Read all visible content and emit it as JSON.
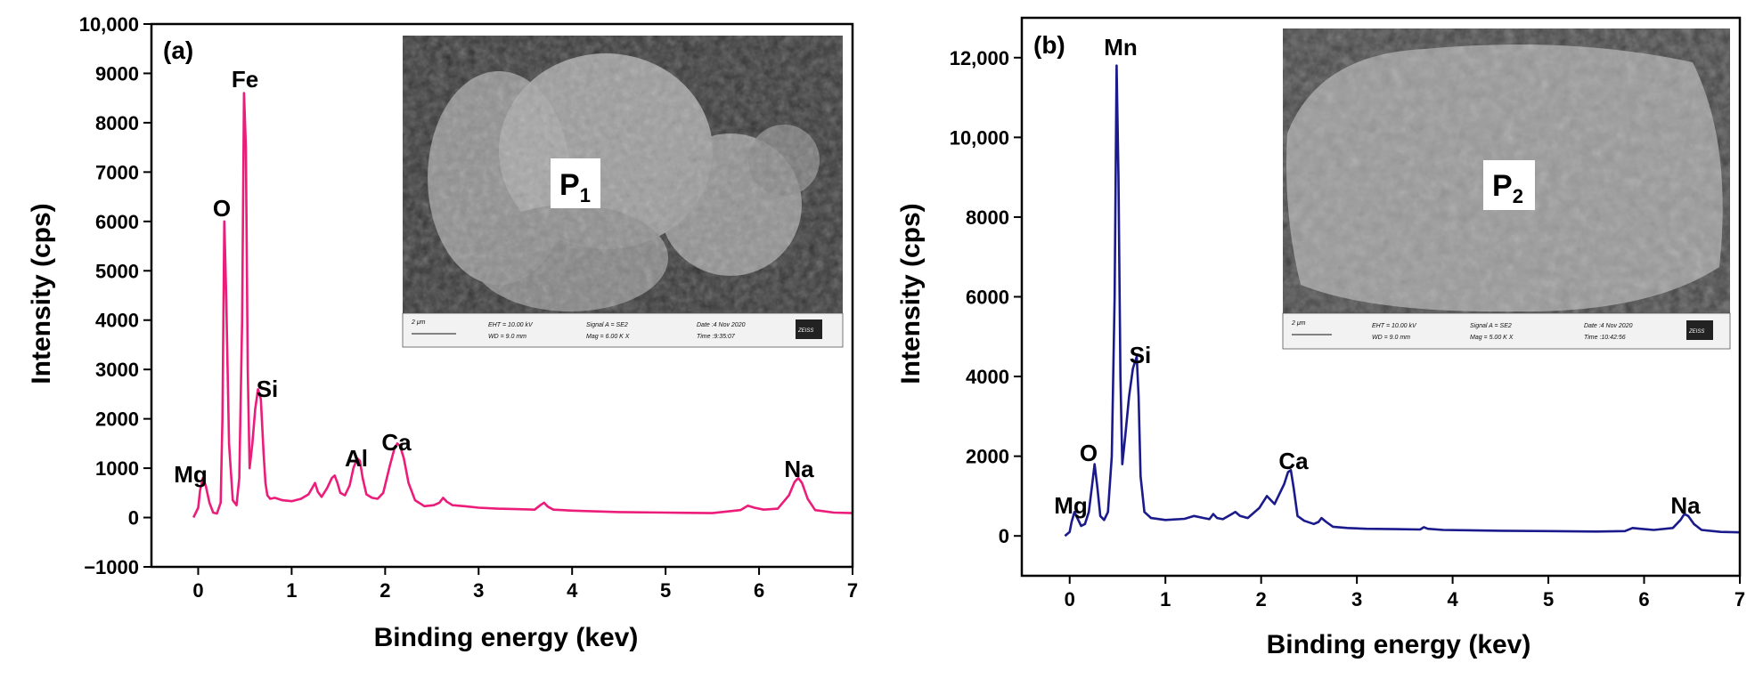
{
  "chart_data": [
    {
      "type": "line",
      "panel_label": "(a)",
      "xlabel": "Binding energy (kev)",
      "ylabel": "Intensity (cps)",
      "xlim": [
        -0.5,
        7
      ],
      "ylim": [
        -1000,
        10000
      ],
      "x_ticks": [
        0,
        1,
        2,
        3,
        4,
        5,
        6,
        7
      ],
      "y_ticks": [
        -1000,
        0,
        1000,
        2000,
        3000,
        4000,
        5000,
        6000,
        7000,
        8000,
        9000,
        10000
      ],
      "y_tick_labels": [
        "−1000",
        "0",
        "1000",
        "2000",
        "3000",
        "4000",
        "5000",
        "6000",
        "7000",
        "8000",
        "9000",
        "10,000"
      ],
      "line_color": "#ec1c7a",
      "series": [
        {
          "x": [
            -0.05,
            0.0,
            0.02,
            0.05,
            0.08,
            0.12,
            0.16,
            0.2,
            0.24,
            0.26,
            0.28,
            0.3,
            0.33,
            0.37,
            0.41,
            0.44,
            0.47,
            0.49,
            0.51,
            0.53,
            0.55,
            0.58,
            0.61,
            0.64,
            0.67,
            0.7,
            0.72,
            0.74,
            0.77,
            0.82,
            0.9,
            1.0,
            1.1,
            1.18,
            1.22,
            1.25,
            1.28,
            1.32,
            1.38,
            1.43,
            1.46,
            1.49,
            1.52,
            1.57,
            1.62,
            1.66,
            1.7,
            1.73,
            1.76,
            1.8,
            1.86,
            1.92,
            1.98,
            2.05,
            2.1,
            2.13,
            2.16,
            2.2,
            2.25,
            2.32,
            2.42,
            2.52,
            2.58,
            2.62,
            2.66,
            2.72,
            2.85,
            3.0,
            3.2,
            3.4,
            3.6,
            3.66,
            3.7,
            3.74,
            3.8,
            4.0,
            4.5,
            5.0,
            5.5,
            5.8,
            5.88,
            5.95,
            6.05,
            6.2,
            6.32,
            6.38,
            6.42,
            6.46,
            6.52,
            6.6,
            6.8,
            7.0
          ],
          "y": [
            0,
            200,
            550,
            800,
            650,
            300,
            100,
            80,
            300,
            2000,
            6000,
            4500,
            1500,
            350,
            250,
            800,
            4000,
            8600,
            7500,
            3000,
            1000,
            1500,
            2200,
            2600,
            2400,
            1300,
            700,
            450,
            380,
            400,
            350,
            330,
            380,
            470,
            600,
            700,
            520,
            420,
            600,
            800,
            850,
            700,
            500,
            450,
            650,
            1000,
            1200,
            1150,
            800,
            470,
            400,
            380,
            500,
            1050,
            1400,
            1500,
            1450,
            1200,
            700,
            350,
            230,
            250,
            300,
            400,
            320,
            250,
            230,
            200,
            180,
            170,
            160,
            250,
            300,
            220,
            160,
            140,
            110,
            100,
            90,
            150,
            240,
            200,
            160,
            180,
            450,
            720,
            800,
            700,
            380,
            150,
            100,
            90
          ]
        }
      ],
      "annotations": [
        "Mg",
        "O",
        "Fe",
        "Si",
        "Al",
        "Ca",
        "Na"
      ],
      "inset": {
        "label_main": "P",
        "label_sub": "1",
        "info_lines": [
          "2 μm",
          "EHT = 10.00 kV",
          "WD = 9.0 mm",
          "Signal A = SE2",
          "Mag = 6.00 K X",
          "Date :4 Nov 2020",
          "Time :9:35:07",
          "ZEISS"
        ]
      }
    },
    {
      "type": "line",
      "panel_label": "(b)",
      "xlabel": "Binding energy (kev)",
      "ylabel": "Intensity (cps)",
      "xlim": [
        -0.5,
        7
      ],
      "ylim": [
        -1000,
        13000
      ],
      "x_ticks": [
        0,
        1,
        2,
        3,
        4,
        5,
        6,
        7
      ],
      "y_ticks": [
        0,
        2000,
        4000,
        6000,
        8000,
        10000,
        12000
      ],
      "y_tick_labels": [
        "0",
        "2000",
        "4000",
        "6000",
        "8000",
        "10,000",
        "12,000"
      ],
      "line_color": "#1a1a8c",
      "series": [
        {
          "x": [
            -0.05,
            0.0,
            0.02,
            0.05,
            0.08,
            0.12,
            0.16,
            0.2,
            0.23,
            0.26,
            0.29,
            0.32,
            0.36,
            0.4,
            0.44,
            0.47,
            0.49,
            0.51,
            0.53,
            0.55,
            0.58,
            0.62,
            0.66,
            0.7,
            0.72,
            0.74,
            0.78,
            0.85,
            1.0,
            1.2,
            1.3,
            1.4,
            1.46,
            1.5,
            1.54,
            1.6,
            1.68,
            1.73,
            1.78,
            1.86,
            1.98,
            2.06,
            2.1,
            2.14,
            2.18,
            2.24,
            2.28,
            2.31,
            2.34,
            2.38,
            2.45,
            2.55,
            2.6,
            2.63,
            2.68,
            2.75,
            2.9,
            3.1,
            3.4,
            3.66,
            3.7,
            3.74,
            3.9,
            4.5,
            5.0,
            5.5,
            5.8,
            5.88,
            5.96,
            6.1,
            6.3,
            6.38,
            6.42,
            6.46,
            6.52,
            6.6,
            6.8,
            7.0
          ],
          "y": [
            0,
            100,
            350,
            600,
            450,
            250,
            300,
            600,
            1200,
            1800,
            1200,
            500,
            400,
            600,
            2000,
            6000,
            11800,
            9000,
            4000,
            1800,
            2500,
            3500,
            4200,
            4500,
            3500,
            1500,
            600,
            450,
            400,
            430,
            500,
            450,
            420,
            550,
            450,
            420,
            530,
            600,
            500,
            450,
            700,
            1000,
            900,
            800,
            1000,
            1300,
            1600,
            1650,
            1200,
            500,
            380,
            300,
            350,
            450,
            350,
            230,
            200,
            180,
            170,
            160,
            220,
            180,
            150,
            130,
            120,
            110,
            120,
            200,
            180,
            150,
            200,
            400,
            550,
            500,
            300,
            150,
            100,
            90
          ]
        }
      ],
      "annotations": [
        "Mg",
        "O",
        "Mn",
        "Si",
        "Ca",
        "Na"
      ],
      "inset": {
        "label_main": "P",
        "label_sub": "2",
        "info_lines": [
          "2 μm",
          "EHT = 10.00 kV",
          "WD = 9.0 mm",
          "Signal A = SE2",
          "Mag = 5.00 K X",
          "Date :4 Nov 2020",
          "Time :10:42:56",
          "ZEISS"
        ]
      }
    }
  ]
}
